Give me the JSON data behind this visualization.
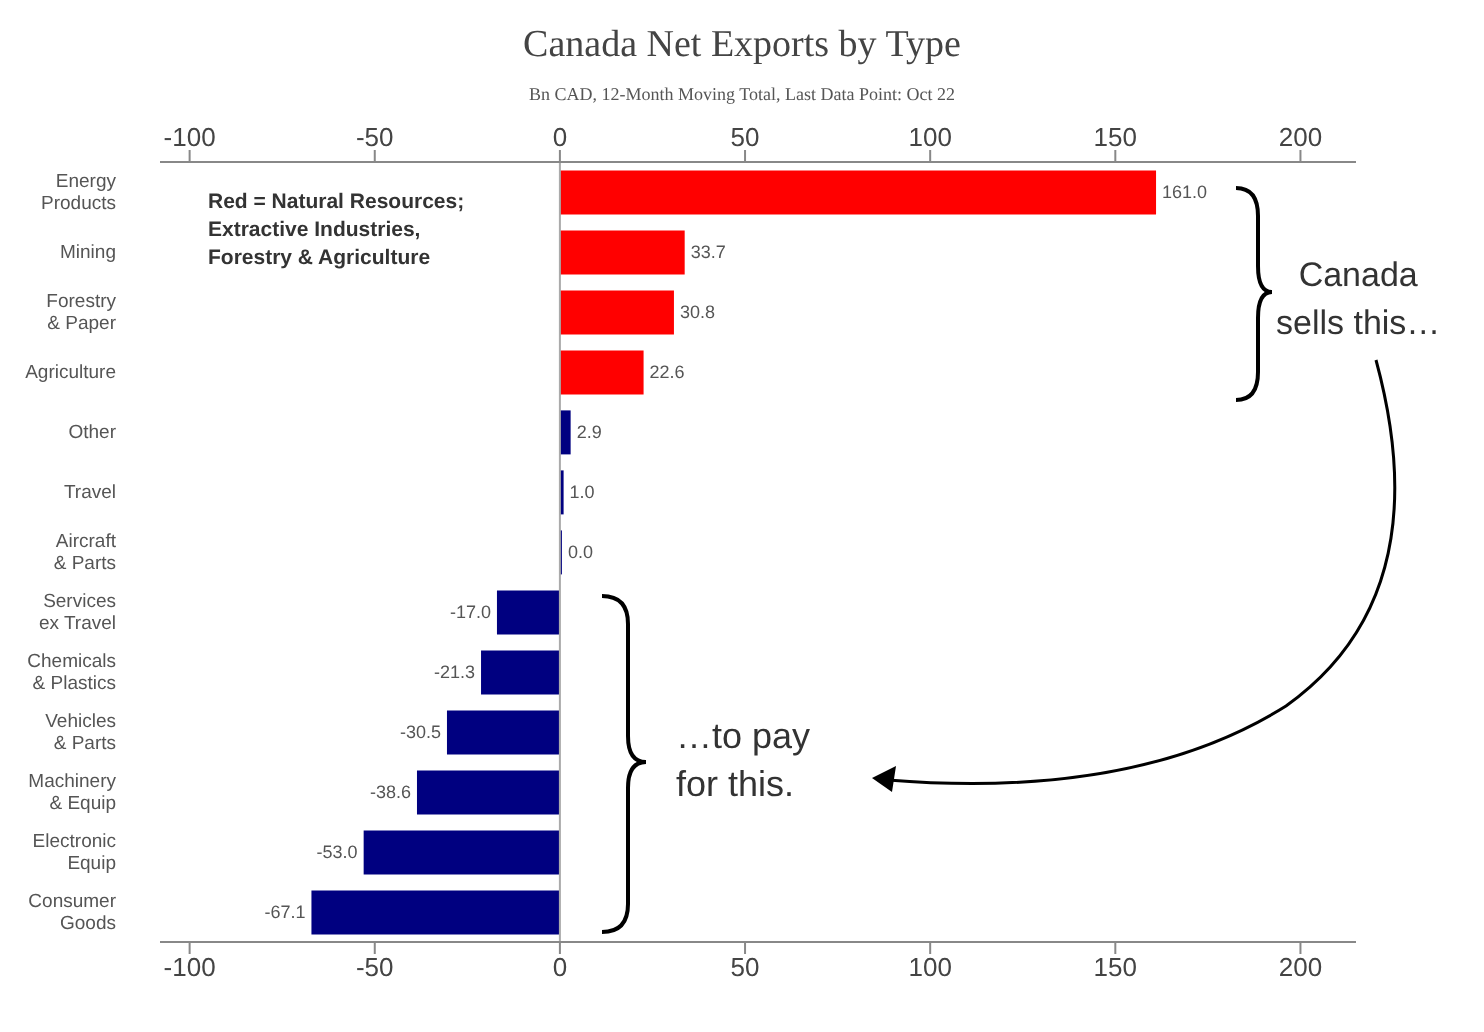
{
  "chart_data": {
    "type": "bar",
    "orientation": "horizontal",
    "title": "Canada Net Exports by Type",
    "subtitle": "Bn CAD, 12-Month Moving Total,  Last Data Point: Oct 22",
    "categories": [
      "Energy\nProducts",
      "Mining",
      "Forestry\n& Paper",
      "Agriculture",
      "Other",
      "Travel",
      "Aircraft\n& Parts",
      "Services\nex Travel",
      "Chemicals\n& Plastics",
      "Vehicles\n& Parts",
      "Machinery\n& Equip",
      "Electronic\nEquip",
      "Consumer\nGoods"
    ],
    "values": [
      161.0,
      33.7,
      30.8,
      22.6,
      2.9,
      1.0,
      0.0,
      -17.0,
      -21.3,
      -30.5,
      -38.6,
      -53.0,
      -67.1
    ],
    "colors": [
      "#ff0000",
      "#ff0000",
      "#ff0000",
      "#ff0000",
      "#000080",
      "#000080",
      "#000080",
      "#000080",
      "#000080",
      "#000080",
      "#000080",
      "#000080",
      "#000080"
    ],
    "value_labels": [
      "161.0",
      "33.7",
      "30.8",
      "22.6",
      "2.9",
      "1.0",
      "0.0",
      "-17.0",
      "-21.3",
      "-30.5",
      "-38.6",
      "-53.0",
      "-67.1"
    ],
    "xlim": [
      -108,
      215
    ],
    "xticks": [
      -100,
      -50,
      0,
      50,
      100,
      150,
      200
    ],
    "x2lim": [
      -108,
      215
    ],
    "x2ticks": [
      -100,
      -50,
      0,
      50,
      100,
      150,
      200
    ],
    "annotations": [
      "Red = Natural Resources;\nExtractive Industries,\nForestry & Agriculture",
      "Canada\nsells this…",
      "…to pay\nfor this."
    ]
  }
}
